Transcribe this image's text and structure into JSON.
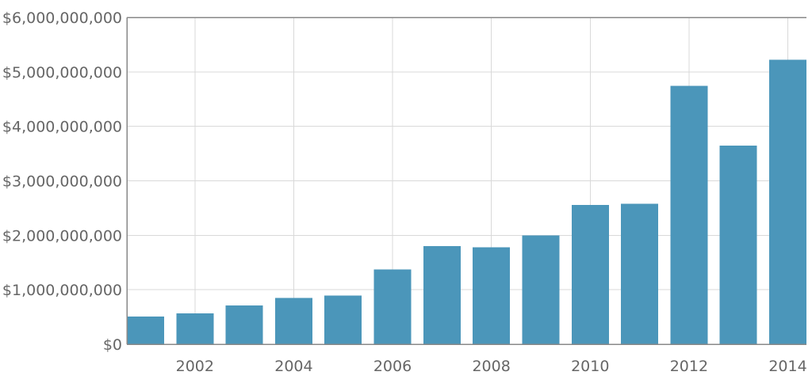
{
  "chart_data": {
    "type": "bar",
    "title": "",
    "xlabel": "",
    "ylabel": "",
    "categories": [
      "2001",
      "2002",
      "2003",
      "2004",
      "2005",
      "2006",
      "2007",
      "2008",
      "2009",
      "2010",
      "2011",
      "2012",
      "2013",
      "2014"
    ],
    "values": [
      510000000,
      570000000,
      710000000,
      850000000,
      890000000,
      1370000000,
      1800000000,
      1780000000,
      2000000000,
      2560000000,
      2580000000,
      4740000000,
      3650000000,
      5220000000
    ],
    "x_ticks": [
      "2002",
      "2004",
      "2006",
      "2008",
      "2010",
      "2012",
      "2014"
    ],
    "y_ticks": [
      0,
      1000000000,
      2000000000,
      3000000000,
      4000000000,
      5000000000,
      6000000000
    ],
    "y_tick_labels": [
      "$0",
      "$1,000,000,000",
      "$2,000,000,000",
      "$3,000,000,000",
      "$4,000,000,000",
      "$5,000,000,000",
      "$6,000,000,000"
    ],
    "ylim": [
      0,
      6000000000
    ],
    "grid": true,
    "legend": "none",
    "colors": {
      "bar": "#4b96ba",
      "grid": "#d9d9d9",
      "axis": "#888888",
      "text": "#666666"
    }
  }
}
